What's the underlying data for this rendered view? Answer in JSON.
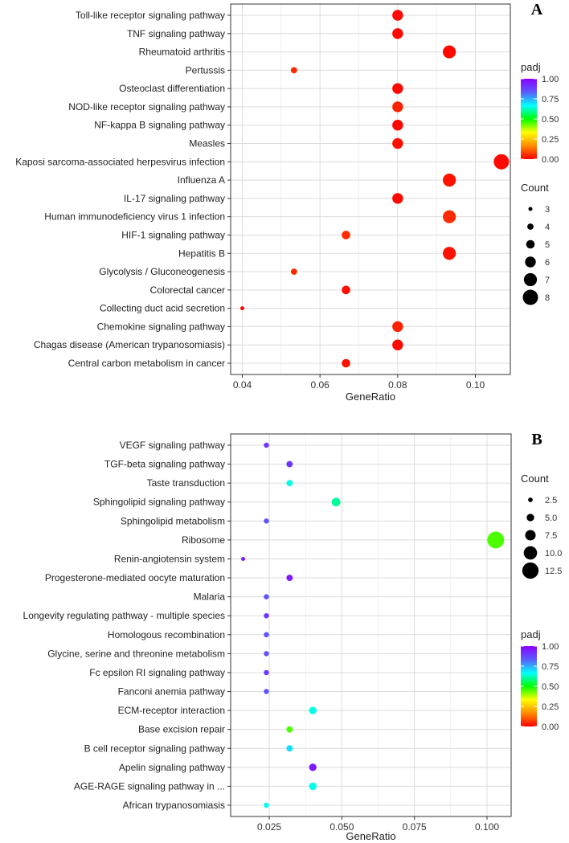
{
  "chart_data": [
    {
      "panel": "A",
      "type": "scatter",
      "xlabel": "GeneRatio",
      "xlim": [
        0.037,
        0.109
      ],
      "xticks": [
        0.04,
        0.06,
        0.08,
        0.1
      ],
      "xtick_labels": [
        "0.04",
        "0.06",
        "0.08",
        "0.10"
      ],
      "categories": [
        "Toll-like receptor signaling pathway",
        "TNF signaling pathway",
        "Rheumatoid arthritis",
        "Pertussis",
        "Osteoclast differentiation",
        "NOD-like receptor signaling pathway",
        "NF-kappa B signaling pathway",
        "Measles",
        "Kaposi sarcoma-associated herpesvirus infection",
        "Influenza A",
        "IL-17 signaling pathway",
        "Human immunodeficiency virus 1 infection",
        "HIF-1 signaling pathway",
        "Hepatitis B",
        "Glycolysis / Gluconeogenesis",
        "Colorectal cancer",
        "Collecting duct acid secretion",
        "Chemokine signaling pathway",
        "Chagas disease (American trypanosomiasis)",
        "Central carbon metabolism in cancer"
      ],
      "gene_ratio": [
        0.08,
        0.08,
        0.0933,
        0.0533,
        0.08,
        0.08,
        0.08,
        0.08,
        0.1067,
        0.0933,
        0.08,
        0.0933,
        0.0667,
        0.0933,
        0.0533,
        0.0667,
        0.04,
        0.08,
        0.08,
        0.0667
      ],
      "count": [
        6,
        6,
        7,
        4,
        6,
        6,
        6,
        6,
        8,
        7,
        6,
        7,
        5,
        7,
        4,
        5,
        3,
        6,
        6,
        5
      ],
      "padj": [
        0.01,
        0.01,
        0.01,
        0.05,
        0.01,
        0.04,
        0.01,
        0.02,
        0.01,
        0.02,
        0.01,
        0.05,
        0.05,
        0.02,
        0.05,
        0.02,
        0.01,
        0.04,
        0.01,
        0.02
      ],
      "legends": {
        "color_title": "padj",
        "color_ticks": [
          1.0,
          0.75,
          0.5,
          0.25,
          0.0
        ],
        "color_tick_labels": [
          "1.00",
          "0.75",
          "0.50",
          "0.25",
          "0.00"
        ],
        "size_title": "Count",
        "size_values": [
          3,
          4,
          5,
          6,
          7,
          8
        ],
        "size_labels": [
          "3",
          "4",
          "5",
          "6",
          "7",
          "8"
        ],
        "order": [
          "color",
          "size"
        ]
      },
      "count_range": [
        3,
        8
      ],
      "colormap": [
        "#ff0000",
        "#ff8c00",
        "#ffff00",
        "#00ff00",
        "#00ffff",
        "#5b5bff",
        "#8b00ff"
      ]
    },
    {
      "panel": "B",
      "type": "scatter",
      "xlabel": "GeneRatio",
      "xlim": [
        0.0117,
        0.1083
      ],
      "xticks": [
        0.025,
        0.05,
        0.075,
        0.1
      ],
      "xtick_labels": [
        "0.025",
        "0.050",
        "0.075",
        "0.100"
      ],
      "categories": [
        "VEGF signaling pathway",
        "TGF-beta signaling pathway",
        "Taste transduction",
        "Sphingolipid signaling pathway",
        "Sphingolipid metabolism",
        "Ribosome",
        "Renin-angiotensin system",
        "Progesterone-mediated oocyte maturation",
        "Malaria",
        "Longevity regulating pathway - multiple species",
        "Homologous recombination",
        "Glycine, serine and threonine metabolism",
        "Fc epsilon RI signaling pathway",
        "Fanconi anemia pathway",
        "ECM-receptor interaction",
        "Base excision repair",
        "B cell receptor signaling pathway",
        "Apelin signaling pathway",
        "AGE-RAGE signaling pathway in ...",
        "African trypanosomiasis"
      ],
      "gene_ratio": [
        0.024,
        0.032,
        0.032,
        0.048,
        0.024,
        0.103,
        0.016,
        0.032,
        0.024,
        0.024,
        0.024,
        0.024,
        0.024,
        0.024,
        0.04,
        0.032,
        0.032,
        0.04,
        0.04,
        0.024
      ],
      "count": [
        3,
        4,
        4,
        6,
        3,
        13,
        2,
        4,
        3,
        3,
        3,
        3,
        3,
        3,
        5,
        4,
        4,
        5,
        5,
        3
      ],
      "padj": [
        0.9,
        0.9,
        0.65,
        0.6,
        0.85,
        0.45,
        0.95,
        0.95,
        0.85,
        0.9,
        0.85,
        0.85,
        0.9,
        0.85,
        0.65,
        0.45,
        0.7,
        0.95,
        0.65,
        0.65
      ],
      "legends": {
        "color_title": "padj",
        "color_ticks": [
          1.0,
          0.75,
          0.5,
          0.25,
          0.0
        ],
        "color_tick_labels": [
          "1.00",
          "0.75",
          "0.50",
          "0.25",
          "0.00"
        ],
        "size_title": "Count",
        "size_values": [
          2.5,
          5.0,
          7.5,
          10.0,
          12.5
        ],
        "size_labels": [
          "2.5",
          "5.0",
          "7.5",
          "10.0",
          "12.5"
        ],
        "order": [
          "size",
          "color"
        ]
      },
      "count_range": [
        2,
        13
      ],
      "colormap": [
        "#ff0000",
        "#ff8c00",
        "#ffff00",
        "#00ff00",
        "#00ffff",
        "#5b5bff",
        "#8b00ff"
      ]
    }
  ]
}
